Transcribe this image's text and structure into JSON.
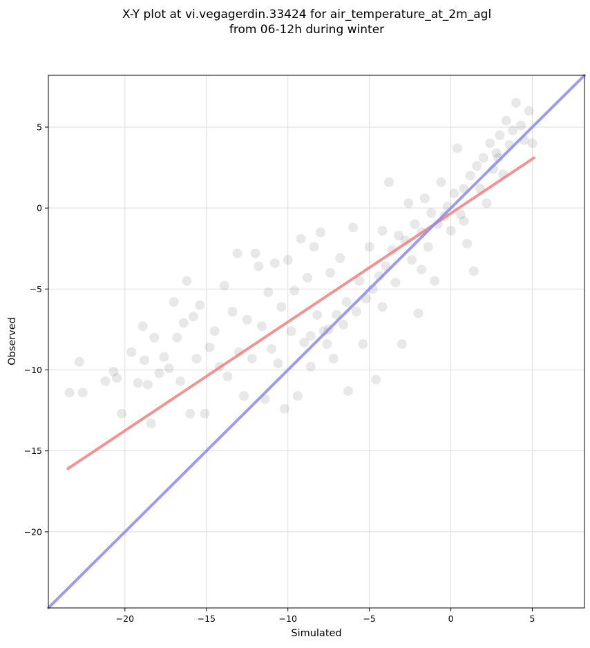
{
  "chart_data": {
    "type": "scatter",
    "title": "X-Y plot at vi.vegagerdin.33424 for air_temperature_at_2m_agl",
    "subtitle": "from 06-12h during winter",
    "xlabel": "Simulated",
    "ylabel": "Observed",
    "xlim": [
      -24.7,
      8.2
    ],
    "ylim": [
      -24.7,
      8.2
    ],
    "xticks": [
      -20,
      -15,
      -10,
      -5,
      0,
      5
    ],
    "yticks": [
      -20,
      -15,
      -10,
      -5,
      0,
      5
    ],
    "xtick_labels": [
      "−20",
      "−15",
      "−10",
      "−5",
      "0",
      "5"
    ],
    "ytick_labels": [
      "−20",
      "−15",
      "−10",
      "−5",
      "0",
      "5"
    ],
    "grid": true,
    "point_color": "#000000",
    "point_alpha": 0.09,
    "points": [
      [
        -23.4,
        -11.4
      ],
      [
        -22.8,
        -9.5
      ],
      [
        -22.6,
        -11.4
      ],
      [
        -21.2,
        -10.7
      ],
      [
        -20.7,
        -10.1
      ],
      [
        -20.5,
        -10.5
      ],
      [
        -20.2,
        -12.7
      ],
      [
        -19.6,
        -8.9
      ],
      [
        -19.2,
        -10.8
      ],
      [
        -18.9,
        -7.3
      ],
      [
        -18.8,
        -9.4
      ],
      [
        -18.6,
        -10.9
      ],
      [
        -18.4,
        -13.3
      ],
      [
        -18.2,
        -8.0
      ],
      [
        -17.9,
        -10.2
      ],
      [
        -17.6,
        -9.2
      ],
      [
        -17.3,
        -9.9
      ],
      [
        -17.0,
        -5.8
      ],
      [
        -16.8,
        -8.0
      ],
      [
        -16.6,
        -10.7
      ],
      [
        -16.4,
        -7.1
      ],
      [
        -16.2,
        -4.5
      ],
      [
        -16.0,
        -12.7
      ],
      [
        -15.8,
        -6.7
      ],
      [
        -15.6,
        -9.3
      ],
      [
        -15.4,
        -6.0
      ],
      [
        -15.1,
        -12.7
      ],
      [
        -14.8,
        -8.6
      ],
      [
        -14.5,
        -7.6
      ],
      [
        -14.2,
        -9.8
      ],
      [
        -13.9,
        -4.8
      ],
      [
        -13.7,
        -10.4
      ],
      [
        -13.4,
        -6.4
      ],
      [
        -13.1,
        -2.8
      ],
      [
        -13.0,
        -8.9
      ],
      [
        -12.7,
        -11.6
      ],
      [
        -12.5,
        -6.9
      ],
      [
        -12.2,
        -9.3
      ],
      [
        -12.0,
        -2.8
      ],
      [
        -11.8,
        -3.6
      ],
      [
        -11.6,
        -7.3
      ],
      [
        -11.4,
        -11.8
      ],
      [
        -11.2,
        -5.2
      ],
      [
        -11.0,
        -8.7
      ],
      [
        -10.8,
        -3.4
      ],
      [
        -10.6,
        -9.6
      ],
      [
        -10.4,
        -6.1
      ],
      [
        -10.2,
        -12.4
      ],
      [
        -10.0,
        -3.2
      ],
      [
        -9.8,
        -7.6
      ],
      [
        -9.6,
        -5.1
      ],
      [
        -9.4,
        -11.6
      ],
      [
        -9.2,
        -1.9
      ],
      [
        -9.0,
        -8.3
      ],
      [
        -8.8,
        -4.3
      ],
      [
        -8.6,
        -9.8
      ],
      [
        -8.4,
        -2.4
      ],
      [
        -8.2,
        -6.6
      ],
      [
        -8.0,
        -1.5
      ],
      [
        -7.8,
        -7.6
      ],
      [
        -7.6,
        -8.4
      ],
      [
        -7.4,
        -4.0
      ],
      [
        -7.2,
        -9.3
      ],
      [
        -7.0,
        -6.6
      ],
      [
        -6.8,
        -3.1
      ],
      [
        -6.6,
        -7.2
      ],
      [
        -6.4,
        -5.8
      ],
      [
        -6.3,
        -11.3
      ],
      [
        -6.0,
        -1.2
      ],
      [
        -5.8,
        -6.4
      ],
      [
        -5.6,
        -4.5
      ],
      [
        -5.4,
        -8.4
      ],
      [
        -5.2,
        -5.6
      ],
      [
        -5.0,
        -2.4
      ],
      [
        -4.8,
        -5.0
      ],
      [
        -4.6,
        -10.6
      ],
      [
        -4.4,
        -4.2
      ],
      [
        -4.2,
        -1.4
      ],
      [
        -4.0,
        -3.6
      ],
      [
        -3.8,
        1.6
      ],
      [
        -3.6,
        -2.6
      ],
      [
        -3.4,
        -4.6
      ],
      [
        -3.2,
        -1.7
      ],
      [
        -3.0,
        -8.4
      ],
      [
        -2.8,
        -2.0
      ],
      [
        -2.6,
        0.3
      ],
      [
        -2.4,
        -3.2
      ],
      [
        -2.2,
        -1.0
      ],
      [
        -2.0,
        -6.5
      ],
      [
        -1.8,
        -1.5
      ],
      [
        -1.6,
        0.6
      ],
      [
        -1.4,
        -2.4
      ],
      [
        -1.2,
        -0.3
      ],
      [
        -1.0,
        -4.5
      ],
      [
        -0.8,
        -1.0
      ],
      [
        -0.6,
        1.6
      ],
      [
        -0.4,
        -0.5
      ],
      [
        -0.2,
        0.1
      ],
      [
        0.0,
        -1.4
      ],
      [
        0.2,
        0.9
      ],
      [
        0.4,
        3.7
      ],
      [
        0.6,
        -0.4
      ],
      [
        0.8,
        1.2
      ],
      [
        1.0,
        -2.2
      ],
      [
        1.2,
        2.0
      ],
      [
        1.4,
        -3.9
      ],
      [
        1.6,
        2.6
      ],
      [
        1.8,
        1.2
      ],
      [
        2.0,
        3.1
      ],
      [
        2.2,
        0.3
      ],
      [
        2.4,
        4.0
      ],
      [
        2.6,
        2.4
      ],
      [
        2.8,
        3.4
      ],
      [
        3.0,
        4.5
      ],
      [
        3.2,
        2.1
      ],
      [
        3.4,
        5.4
      ],
      [
        3.6,
        3.9
      ],
      [
        3.8,
        4.8
      ],
      [
        4.0,
        6.5
      ],
      [
        4.3,
        5.1
      ],
      [
        4.5,
        4.2
      ],
      [
        4.8,
        6.0
      ],
      [
        5.0,
        4.0
      ],
      [
        -4.2,
        -6.1
      ],
      [
        -7.5,
        -7.5
      ],
      [
        -1.8,
        -3.8
      ],
      [
        0.8,
        -0.8
      ],
      [
        -8.6,
        -7.9
      ],
      [
        2.9,
        3.1
      ]
    ],
    "lines": [
      {
        "style": "red",
        "color": "#f08080",
        "x": [
          -23.5,
          5.1
        ],
        "y": [
          -16.1,
          3.1
        ]
      },
      {
        "style": "blue",
        "color": "#8a8af0",
        "x": [
          -24.7,
          8.2
        ],
        "y": [
          -24.7,
          8.2
        ]
      }
    ]
  }
}
